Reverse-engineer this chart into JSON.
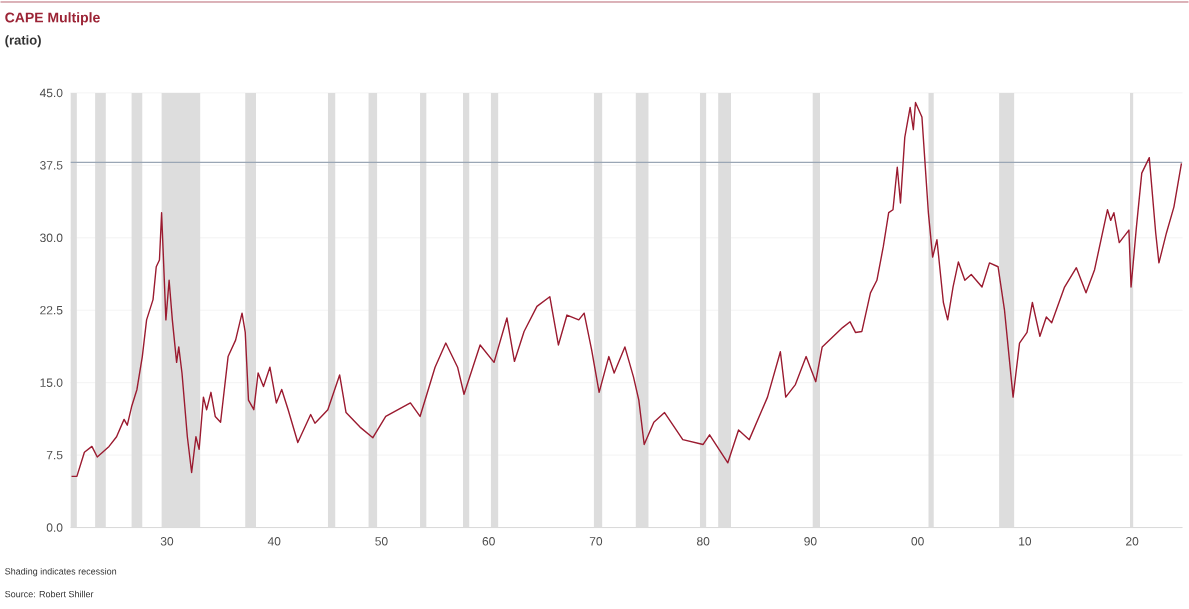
{
  "chart_data": {
    "type": "line",
    "title": "CAPE Multiple",
    "subtitle": "(ratio)",
    "x": [
      1921.1,
      1921.6,
      1922.3,
      1923.0,
      1923.5,
      1924.6,
      1925.3,
      1926.0,
      1926.3,
      1926.7,
      1927.2,
      1927.7,
      1928.1,
      1928.7,
      1929.0,
      1929.3,
      1929.5,
      1929.9,
      1930.2,
      1930.5,
      1930.9,
      1931.1,
      1931.4,
      1931.9,
      1932.3,
      1932.7,
      1933.0,
      1933.4,
      1933.7,
      1934.1,
      1934.5,
      1935.0,
      1935.7,
      1936.4,
      1937.0,
      1937.3,
      1937.6,
      1938.1,
      1938.5,
      1939.0,
      1939.6,
      1940.2,
      1940.7,
      1941.3,
      1942.2,
      1943.4,
      1943.8,
      1945.0,
      1946.1,
      1946.7,
      1948.0,
      1949.2,
      1950.4,
      1952.7,
      1953.6,
      1955.0,
      1956.0,
      1957.1,
      1957.7,
      1959.2,
      1960.5,
      1961.7,
      1962.4,
      1963.3,
      1964.5,
      1965.7,
      1966.5,
      1967.3,
      1968.4,
      1968.9,
      1969.6,
      1970.3,
      1971.2,
      1971.7,
      1972.7,
      1973.5,
      1974.0,
      1974.5,
      1975.4,
      1976.4,
      1978.1,
      1980.0,
      1980.6,
      1982.3,
      1983.3,
      1984.3,
      1986.0,
      1987.2,
      1987.7,
      1988.6,
      1989.6,
      1990.5,
      1991.1,
      1993.0,
      1993.7,
      1994.2,
      1994.8,
      1995.6,
      1996.2,
      1996.8,
      1997.3,
      1997.7,
      1998.1,
      1998.4,
      1998.8,
      1999.3,
      1999.6,
      1999.8,
      2000.4,
      2001.0,
      2001.4,
      2001.8,
      2002.4,
      2002.8,
      2003.3,
      2003.8,
      2004.4,
      2005.0,
      2006.0,
      2006.7,
      2007.5,
      2008.1,
      2008.9,
      2009.5,
      2010.2,
      2010.7,
      2011.4,
      2012.0,
      2012.5,
      2013.7,
      2014.8,
      2015.7,
      2016.5,
      2017.7,
      2018.0,
      2018.3,
      2018.8,
      2019.7,
      2019.9,
      2020.4,
      2020.9,
      2021.6,
      2022.2,
      2022.5,
      2023.2,
      2023.9,
      2024.6
    ],
    "series": [
      {
        "color": "#9b1b30",
        "values": [
          5.3,
          5.3,
          7.8,
          8.4,
          7.3,
          8.4,
          9.4,
          11.2,
          10.6,
          12.5,
          14.3,
          17.7,
          21.5,
          23.6,
          27.0,
          27.7,
          32.6,
          21.5,
          25.6,
          21.5,
          17.1,
          18.7,
          16.0,
          9.4,
          5.7,
          9.4,
          8.1,
          13.5,
          12.2,
          14.0,
          11.5,
          10.9,
          17.7,
          19.4,
          22.2,
          20.2,
          13.2,
          12.2,
          16.0,
          14.6,
          16.6,
          12.9,
          14.3,
          12.2,
          8.8,
          11.7,
          10.8,
          12.2,
          15.8,
          11.9,
          10.4,
          9.3,
          11.5,
          12.9,
          11.5,
          16.6,
          19.1,
          16.6,
          13.8,
          18.9,
          17.1,
          21.7,
          17.2,
          20.3,
          22.9,
          23.9,
          18.9,
          22.0,
          21.5,
          22.2,
          18.4,
          14.0,
          17.7,
          16.0,
          18.7,
          15.6,
          13.2,
          8.6,
          10.9,
          11.9,
          9.1,
          8.6,
          9.6,
          6.7,
          10.1,
          9.1,
          13.5,
          18.2,
          13.5,
          14.8,
          17.7,
          15.1,
          18.7,
          20.7,
          21.3,
          20.2,
          20.3,
          24.3,
          25.6,
          29.1,
          32.6,
          32.9,
          37.3,
          33.6,
          40.4,
          43.5,
          41.2,
          44.0,
          42.5,
          32.6,
          28.0,
          29.8,
          23.3,
          21.5,
          24.9,
          27.5,
          25.6,
          26.2,
          24.9,
          27.4,
          27.0,
          22.5,
          13.5,
          19.1,
          20.2,
          23.3,
          19.8,
          21.8,
          21.2,
          24.9,
          26.9,
          24.3,
          26.7,
          32.9,
          31.8,
          32.6,
          29.5,
          30.8,
          24.9,
          31.1,
          36.7,
          38.3,
          30.5,
          27.4,
          30.5,
          33.2,
          37.7
        ]
      }
    ],
    "xlim": [
      1921,
      2024.7
    ],
    "xticks": [
      {
        "value": 1930,
        "label": "30"
      },
      {
        "value": 1940,
        "label": "40"
      },
      {
        "value": 1950,
        "label": "50"
      },
      {
        "value": 1960,
        "label": "60"
      },
      {
        "value": 1970,
        "label": "70"
      },
      {
        "value": 1980,
        "label": "80"
      },
      {
        "value": 1990,
        "label": "90"
      },
      {
        "value": 2000,
        "label": "00"
      },
      {
        "value": 2010,
        "label": "10"
      },
      {
        "value": 2020,
        "label": "20"
      }
    ],
    "ylim": [
      0,
      45
    ],
    "yticks": [
      {
        "value": 0,
        "label": "0.0"
      },
      7.5,
      {
        "value": 15,
        "label": "15.0"
      },
      22.5,
      {
        "value": 30,
        "label": "30.0"
      },
      37.5,
      {
        "value": 45,
        "label": "45.0"
      }
    ],
    "grid": "y",
    "ref_lines": [
      {
        "axis": "y",
        "value": 37.8,
        "color": "#9aa6b5"
      }
    ],
    "bands": [
      {
        "axis": "x",
        "from": 1921,
        "to": 1921.6,
        "color": "#dddddd"
      },
      {
        "axis": "x",
        "from": 1923.3,
        "to": 1924.3,
        "color": "#dddddd"
      },
      {
        "axis": "x",
        "from": 1926.7,
        "to": 1927.7,
        "color": "#dddddd"
      },
      {
        "axis": "x",
        "from": 1929.5,
        "to": 1933.1,
        "color": "#dddddd"
      },
      {
        "axis": "x",
        "from": 1937.3,
        "to": 1938.3,
        "color": "#dddddd"
      },
      {
        "axis": "x",
        "from": 1945.0,
        "to": 1945.7,
        "color": "#dddddd"
      },
      {
        "axis": "x",
        "from": 1948.8,
        "to": 1949.6,
        "color": "#dddddd"
      },
      {
        "axis": "x",
        "from": 1953.6,
        "to": 1954.2,
        "color": "#dddddd"
      },
      {
        "axis": "x",
        "from": 1957.6,
        "to": 1958.2,
        "color": "#dddddd"
      },
      {
        "axis": "x",
        "from": 1960.2,
        "to": 1960.9,
        "color": "#dddddd"
      },
      {
        "axis": "x",
        "from": 1969.8,
        "to": 1970.6,
        "color": "#dddddd"
      },
      {
        "axis": "x",
        "from": 1973.7,
        "to": 1974.9,
        "color": "#dddddd"
      },
      {
        "axis": "x",
        "from": 1979.7,
        "to": 1980.3,
        "color": "#dddddd"
      },
      {
        "axis": "x",
        "from": 1981.4,
        "to": 1982.6,
        "color": "#dddddd"
      },
      {
        "axis": "x",
        "from": 1990.2,
        "to": 1990.9,
        "color": "#dddddd"
      },
      {
        "axis": "x",
        "from": 2001.0,
        "to": 2001.5,
        "color": "#dddddd"
      },
      {
        "axis": "x",
        "from": 2007.6,
        "to": 2009.0,
        "color": "#dddddd"
      },
      {
        "axis": "x",
        "from": 2019.8,
        "to": 2020.1,
        "color": "#dddddd"
      }
    ],
    "annotations": [
      "Shading indicates recession",
      "Source: Robert Shiller"
    ]
  }
}
